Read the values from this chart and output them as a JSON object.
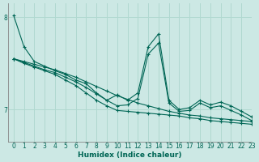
{
  "xlabel": "Humidex (Indice chaleur)",
  "xlim": [
    -0.5,
    23
  ],
  "ylim": [
    6.65,
    8.15
  ],
  "bg_color": "#cce8e4",
  "grid_color": "#b0d8d0",
  "line_color": "#006655",
  "yticks": [
    7,
    8
  ],
  "xticks": [
    0,
    1,
    2,
    3,
    4,
    5,
    6,
    7,
    8,
    9,
    10,
    11,
    12,
    13,
    14,
    15,
    16,
    17,
    18,
    19,
    20,
    21,
    22,
    23
  ],
  "series": [
    [
      8.02,
      7.68,
      7.52,
      7.47,
      7.42,
      7.38,
      7.32,
      7.28,
      7.18,
      7.1,
      7.16,
      7.1,
      7.18,
      7.68,
      7.82,
      7.1,
      7.0,
      7.02,
      7.1,
      7.05,
      7.08,
      7.04,
      6.98,
      6.92
    ],
    [
      7.55,
      7.52,
      7.49,
      7.46,
      7.43,
      7.39,
      7.35,
      7.3,
      7.25,
      7.2,
      7.15,
      7.11,
      7.07,
      7.04,
      7.01,
      6.98,
      6.96,
      6.94,
      6.93,
      6.91,
      6.9,
      6.89,
      6.88,
      6.87
    ],
    [
      7.55,
      7.51,
      7.47,
      7.43,
      7.4,
      7.35,
      7.3,
      7.24,
      7.17,
      7.1,
      7.04,
      7.05,
      7.12,
      7.6,
      7.72,
      7.07,
      6.98,
      6.99,
      7.07,
      7.02,
      7.04,
      6.99,
      6.94,
      6.88
    ],
    [
      7.55,
      7.5,
      7.46,
      7.42,
      7.38,
      7.32,
      7.26,
      7.18,
      7.1,
      7.04,
      6.99,
      6.98,
      6.97,
      6.96,
      6.95,
      6.94,
      6.93,
      6.91,
      6.9,
      6.88,
      6.87,
      6.86,
      6.85,
      6.84
    ]
  ]
}
